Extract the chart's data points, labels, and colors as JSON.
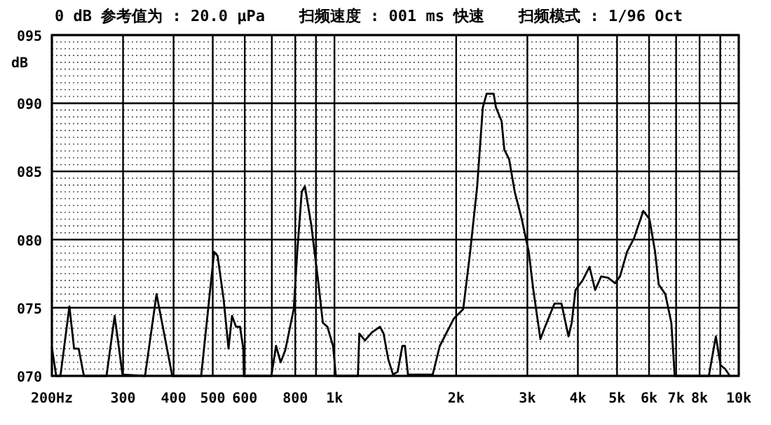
{
  "chart_data": {
    "type": "line",
    "title": "0 dB 参考值为 : 20.0 μPa",
    "annotations": [
      "扫频速度 : 001 ms 快速",
      "扫频模式 : 1/96 Oct"
    ],
    "ylabel": "dB",
    "log": "x",
    "grid": true,
    "color": "#000000",
    "xlim": [
      200,
      10000
    ],
    "ylim": [
      70,
      95
    ],
    "xticks": [
      {
        "value": 200,
        "label": "200Hz"
      },
      300,
      400,
      500,
      600,
      {
        "value": 700,
        "label": null
      },
      800,
      {
        "value": 900,
        "label": null
      },
      {
        "value": 1000,
        "label": "1k"
      },
      {
        "value": 2000,
        "label": "2k"
      },
      {
        "value": 3000,
        "label": "3k"
      },
      {
        "value": 4000,
        "label": "4k"
      },
      {
        "value": 5000,
        "label": "5k"
      },
      {
        "value": 6000,
        "label": "6k"
      },
      {
        "value": 7000,
        "label": "7k"
      },
      {
        "value": 8000,
        "label": "8k"
      },
      {
        "value": 9000,
        "label": null
      },
      {
        "value": 10000,
        "label": "10k"
      }
    ],
    "yticks": [
      {
        "value": 70,
        "label": "070"
      },
      {
        "value": 75,
        "label": "075"
      },
      {
        "value": 80,
        "label": "080"
      },
      {
        "value": 85,
        "label": "085"
      },
      {
        "value": 90,
        "label": "090"
      },
      {
        "value": 95,
        "label": "095"
      }
    ],
    "x": [
      200,
      205,
      210,
      221,
      227,
      233,
      240,
      273,
      286,
      299,
      340,
      363,
      397,
      468,
      504,
      514,
      532,
      547,
      558,
      571,
      584,
      595,
      597,
      698,
      717,
      736,
      756,
      793,
      809,
      830,
      845,
      876,
      911,
      936,
      961,
      992,
      1008,
      1143,
      1152,
      1190,
      1238,
      1296,
      1323,
      1359,
      1396,
      1433,
      1472,
      1494,
      1520,
      1750,
      1822,
      1973,
      2082,
      2166,
      2254,
      2328,
      2379,
      2476,
      2508,
      2590,
      2631,
      2704,
      2792,
      2906,
      3024,
      3104,
      3231,
      3318,
      3500,
      3644,
      3792,
      3863,
      3946,
      4108,
      4274,
      4413,
      4568,
      4753,
      4947,
      5084,
      5292,
      5508,
      5806,
      6014,
      6209,
      6339,
      6582,
      6811,
      6943,
      8434,
      8777,
      9012,
      9259,
      9510
    ],
    "values": [
      72.1,
      70,
      70,
      75.1,
      72.0,
      72.0,
      70,
      70,
      74.4,
      70.1,
      70,
      76.0,
      70,
      70,
      79.1,
      78.8,
      75.6,
      72.0,
      74.4,
      73.6,
      73.6,
      72.0,
      70,
      70,
      72.2,
      71.0,
      71.9,
      74.9,
      79.1,
      83.5,
      83.9,
      81.1,
      77.0,
      73.9,
      73.6,
      72.2,
      70,
      70,
      73.1,
      72.6,
      73.2,
      73.6,
      73.1,
      71.2,
      70.1,
      70.3,
      72.2,
      72.2,
      70.1,
      70.1,
      72.2,
      74.2,
      74.9,
      79.1,
      83.9,
      89.7,
      90.7,
      90.7,
      89.7,
      88.7,
      86.6,
      85.9,
      83.5,
      81.5,
      79.1,
      76.3,
      72.7,
      73.6,
      75.3,
      75.3,
      72.9,
      73.9,
      76.3,
      77.0,
      78.0,
      76.3,
      77.3,
      77.2,
      76.8,
      77.3,
      79.1,
      80.1,
      82.1,
      81.5,
      79.1,
      76.7,
      76.0,
      73.9,
      70,
      70,
      72.9,
      70.8,
      70.5,
      70
    ]
  }
}
